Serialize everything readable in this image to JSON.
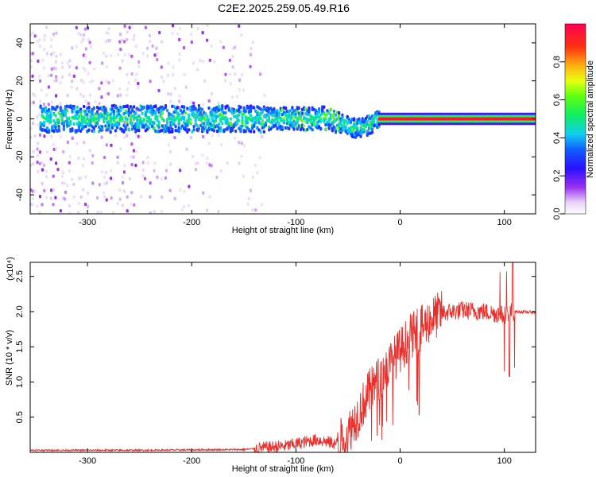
{
  "figure": {
    "title": "C2E2.2025.259.05.49.R16"
  },
  "chart_data": [
    {
      "type": "heatmap",
      "xlabel": "Height of straight line (km)",
      "ylabel": "Frequency (Hz)",
      "xlim": [
        -355,
        130
      ],
      "ylim": [
        -50,
        50
      ],
      "xticks": [
        -300,
        -200,
        -100,
        0,
        100
      ],
      "yticks": [
        -40,
        -20,
        0,
        20,
        40
      ],
      "colorbar": {
        "label": "Normalized spectral amplitude",
        "range": [
          0,
          1
        ],
        "ticks": [
          0.0,
          0.2,
          0.4,
          0.6,
          0.8
        ],
        "colormap": "rainbow (white-violet-blue-cyan-green-yellow-orange-red)"
      },
      "features": {
        "central_band_frequency_hz": 0,
        "noise_extent_x": [
          -355,
          -130
        ],
        "tone_start_x": -20,
        "tone_amplitude": 0.95,
        "dip_x": -40,
        "dip_frequency_hz": -4
      }
    },
    {
      "type": "line",
      "xlabel": "Height of straight line (km)",
      "ylabel": "SNR (10 * v/v)",
      "y_multiplier": "(x10⁴)",
      "xlim": [
        -355,
        130
      ],
      "ylim": [
        0,
        2.7
      ],
      "xticks": [
        -300,
        -200,
        -100,
        0,
        100
      ],
      "yticks": [
        0.5,
        1.0,
        1.5,
        2.0,
        2.5
      ],
      "series": [
        {
          "color": "#e8302c",
          "envelope_x": [
            -355,
            -250,
            -150,
            -110,
            -80,
            -60,
            -50,
            -40,
            -30,
            -20,
            -10,
            0,
            10,
            20,
            30,
            40,
            60,
            80,
            100,
            105,
            110,
            130
          ],
          "envelope_y": [
            0.03,
            0.03,
            0.04,
            0.09,
            0.18,
            0.12,
            0.28,
            0.55,
            0.85,
            1.05,
            1.25,
            1.45,
            1.65,
            1.75,
            1.9,
            1.98,
            2.02,
            2.0,
            1.95,
            2.0,
            2.0,
            1.99
          ]
        }
      ]
    }
  ]
}
